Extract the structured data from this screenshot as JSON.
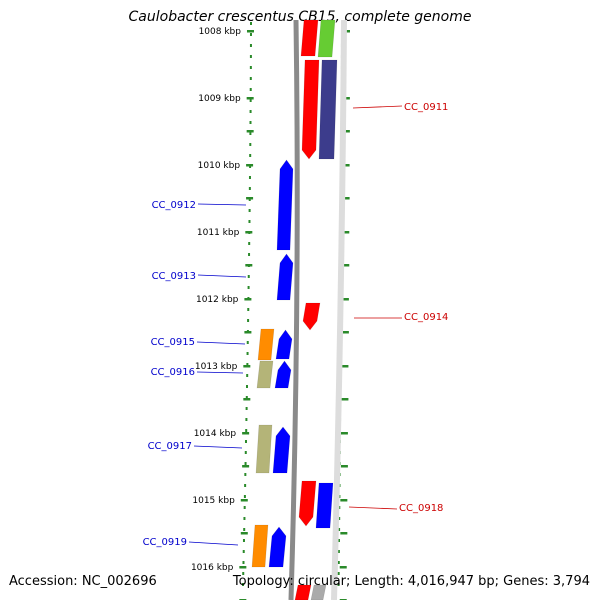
{
  "title": "Caulobacter crescentus CB15, complete genome",
  "footer": {
    "accession": "Accession: NC_002696",
    "summary": "Topology: circular; Length: 4,016,947 bp; Genes: 3,794"
  },
  "colors": {
    "ruler": "#2a8a2a",
    "backbone": "#8a8a8a",
    "left_label": "#0000cc",
    "right_label": "#cc0000",
    "blue": "#0000ff",
    "red": "#ff0000",
    "navy": "#3c3c8c",
    "orange": "#ff8c00",
    "olive": "#b4b478",
    "green": "#66cc33"
  },
  "kbp_ticks": [
    {
      "label": "1008 kbp"
    },
    {
      "label": "1009 kbp"
    },
    {
      "label": "1010 kbp"
    },
    {
      "label": "1011 kbp"
    },
    {
      "label": "1012 kbp"
    },
    {
      "label": "1013 kbp"
    },
    {
      "label": "1014 kbp"
    },
    {
      "label": "1015 kbp"
    },
    {
      "label": "1016 kbp"
    }
  ],
  "gene_labels": [
    {
      "text": "CC_0911",
      "side": "right"
    },
    {
      "text": "CC_0912",
      "side": "left"
    },
    {
      "text": "CC_0913",
      "side": "left"
    },
    {
      "text": "CC_0914",
      "side": "right"
    },
    {
      "text": "CC_0915",
      "side": "left"
    },
    {
      "text": "CC_0916",
      "side": "left"
    },
    {
      "text": "CC_0917",
      "side": "left"
    },
    {
      "text": "CC_0918",
      "side": "right"
    },
    {
      "text": "CC_0919",
      "side": "left"
    }
  ]
}
